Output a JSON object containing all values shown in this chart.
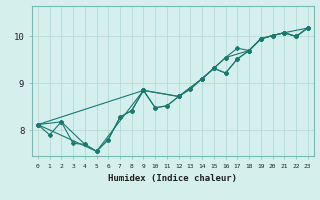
{
  "xlabel": "Humidex (Indice chaleur)",
  "bg_color": "#d4efec",
  "grid_color": "#b0d8d4",
  "line_color": "#1a7a6e",
  "xlim": [
    -0.5,
    23.5
  ],
  "ylim": [
    7.45,
    10.65
  ],
  "yticks": [
    8,
    9,
    10
  ],
  "xticks": [
    0,
    1,
    2,
    3,
    4,
    5,
    6,
    7,
    8,
    9,
    10,
    11,
    12,
    13,
    14,
    15,
    16,
    17,
    18,
    19,
    20,
    21,
    22,
    23
  ],
  "line1_x": [
    0,
    1,
    2,
    3,
    4,
    5,
    6,
    7,
    8,
    9,
    10,
    11,
    12,
    13,
    14,
    15,
    16,
    17,
    18,
    19,
    20,
    21,
    22,
    23
  ],
  "line1_y": [
    8.12,
    7.9,
    8.18,
    7.72,
    7.7,
    7.55,
    7.8,
    8.28,
    8.42,
    8.85,
    8.48,
    8.52,
    8.72,
    8.88,
    9.1,
    9.32,
    9.22,
    9.52,
    9.7,
    9.95,
    10.02,
    10.08,
    10.0,
    10.18
  ],
  "line2_x": [
    0,
    2,
    4,
    5,
    6,
    7,
    8,
    9,
    10,
    11,
    12,
    13,
    14,
    15,
    16,
    17,
    18,
    19,
    20,
    21,
    22,
    23
  ],
  "line2_y": [
    8.12,
    8.18,
    7.7,
    7.55,
    7.8,
    8.28,
    8.42,
    8.85,
    8.48,
    8.52,
    8.72,
    8.88,
    9.1,
    9.32,
    9.22,
    9.52,
    9.7,
    9.95,
    10.02,
    10.08,
    10.0,
    10.18
  ],
  "line3_x": [
    0,
    5,
    9,
    12,
    14,
    16,
    18,
    19,
    21,
    23
  ],
  "line3_y": [
    8.12,
    7.55,
    8.85,
    8.72,
    9.1,
    9.55,
    9.7,
    9.95,
    10.08,
    10.18
  ],
  "line4_x": [
    0,
    9,
    12,
    14,
    15,
    16,
    17,
    18,
    19,
    20,
    21,
    22,
    23
  ],
  "line4_y": [
    8.12,
    8.85,
    8.72,
    9.1,
    9.32,
    9.55,
    9.75,
    9.7,
    9.95,
    10.02,
    10.08,
    10.0,
    10.18
  ]
}
